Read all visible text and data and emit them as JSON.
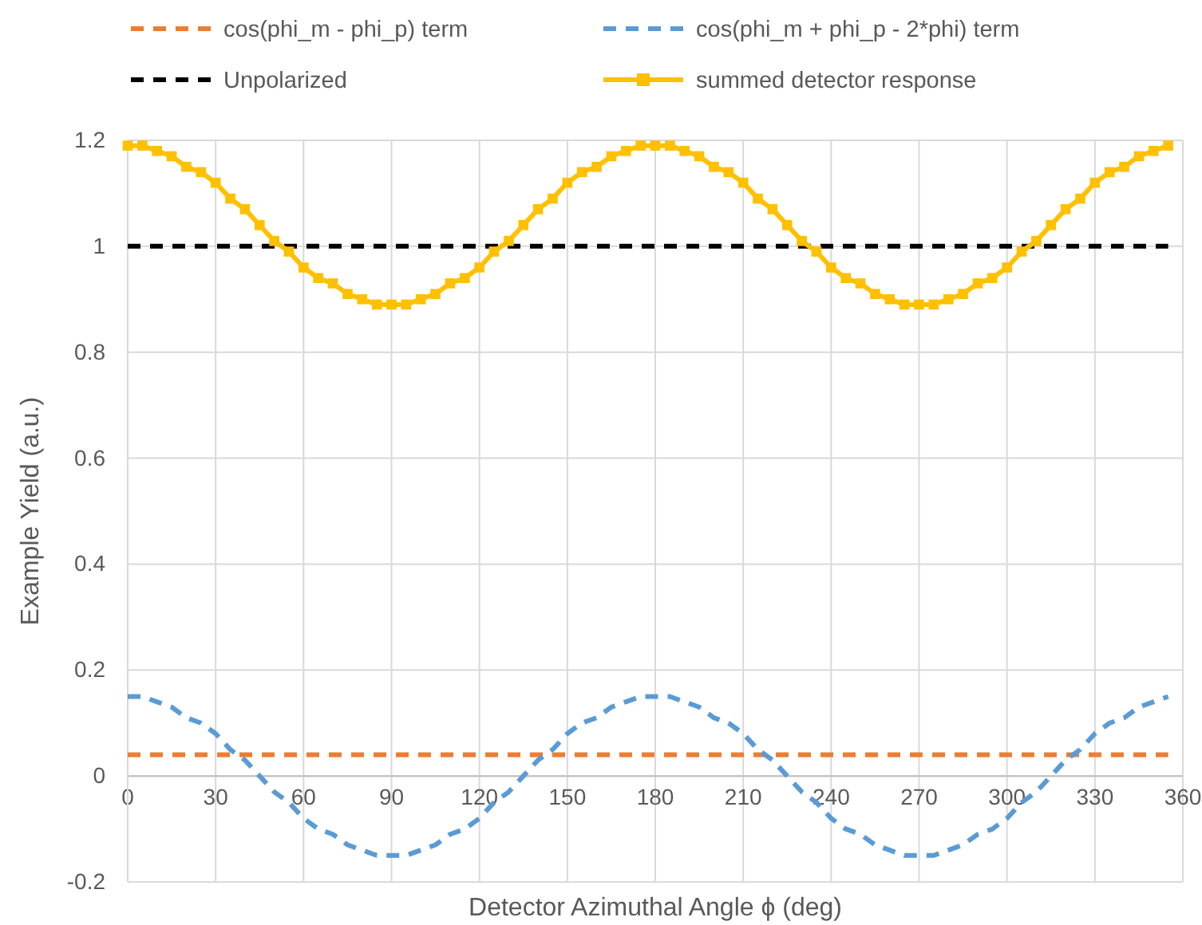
{
  "chart_data": {
    "type": "line",
    "xlabel": "Detector Azimuthal Angle ϕ (deg)",
    "ylabel": "Example Yield (a.u.)",
    "x": [
      0,
      5,
      10,
      15,
      20,
      25,
      30,
      35,
      40,
      45,
      50,
      55,
      60,
      65,
      70,
      75,
      80,
      85,
      90,
      95,
      100,
      105,
      110,
      115,
      120,
      125,
      130,
      135,
      140,
      145,
      150,
      155,
      160,
      165,
      170,
      175,
      180,
      185,
      190,
      195,
      200,
      205,
      210,
      215,
      220,
      225,
      230,
      235,
      240,
      245,
      250,
      255,
      260,
      265,
      270,
      275,
      280,
      285,
      290,
      295,
      300,
      305,
      310,
      315,
      320,
      325,
      330,
      335,
      340,
      345,
      350,
      355
    ],
    "series": [
      {
        "name": "cos(phi_m - phi_p) term",
        "color": "#ed7d31",
        "line_style": "dashed",
        "marker": "none",
        "values": [
          0.04,
          0.04,
          0.04,
          0.04,
          0.04,
          0.04,
          0.04,
          0.04,
          0.04,
          0.04,
          0.04,
          0.04,
          0.04,
          0.04,
          0.04,
          0.04,
          0.04,
          0.04,
          0.04,
          0.04,
          0.04,
          0.04,
          0.04,
          0.04,
          0.04,
          0.04,
          0.04,
          0.04,
          0.04,
          0.04,
          0.04,
          0.04,
          0.04,
          0.04,
          0.04,
          0.04,
          0.04,
          0.04,
          0.04,
          0.04,
          0.04,
          0.04,
          0.04,
          0.04,
          0.04,
          0.04,
          0.04,
          0.04,
          0.04,
          0.04,
          0.04,
          0.04,
          0.04,
          0.04,
          0.04,
          0.04,
          0.04,
          0.04,
          0.04,
          0.04,
          0.04,
          0.04,
          0.04,
          0.04,
          0.04,
          0.04,
          0.04,
          0.04,
          0.04,
          0.04,
          0.04,
          0.04
        ]
      },
      {
        "name": "cos(phi_m + phi_p - 2*phi) term",
        "color": "#5b9bd5",
        "line_style": "dashed",
        "marker": "none",
        "values": [
          0.15,
          0.15,
          0.14,
          0.13,
          0.11,
          0.1,
          0.08,
          0.05,
          0.03,
          0,
          -0.03,
          -0.05,
          -0.08,
          -0.1,
          -0.11,
          -0.13,
          -0.14,
          -0.15,
          -0.15,
          -0.15,
          -0.14,
          -0.13,
          -0.11,
          -0.1,
          -0.08,
          -0.05,
          -0.03,
          0,
          0.03,
          0.05,
          0.08,
          0.1,
          0.11,
          0.13,
          0.14,
          0.15,
          0.15,
          0.15,
          0.14,
          0.13,
          0.11,
          0.1,
          0.08,
          0.05,
          0.03,
          0,
          -0.03,
          -0.05,
          -0.08,
          -0.1,
          -0.11,
          -0.13,
          -0.14,
          -0.15,
          -0.15,
          -0.15,
          -0.14,
          -0.13,
          -0.11,
          -0.1,
          -0.08,
          -0.05,
          -0.03,
          0,
          0.03,
          0.05,
          0.08,
          0.1,
          0.11,
          0.13,
          0.14,
          0.15
        ]
      },
      {
        "name": "Unpolarized",
        "color": "#000000",
        "line_style": "dashed",
        "marker": "none",
        "values": [
          1,
          1,
          1,
          1,
          1,
          1,
          1,
          1,
          1,
          1,
          1,
          1,
          1,
          1,
          1,
          1,
          1,
          1,
          1,
          1,
          1,
          1,
          1,
          1,
          1,
          1,
          1,
          1,
          1,
          1,
          1,
          1,
          1,
          1,
          1,
          1,
          1,
          1,
          1,
          1,
          1,
          1,
          1,
          1,
          1,
          1,
          1,
          1,
          1,
          1,
          1,
          1,
          1,
          1,
          1,
          1,
          1,
          1,
          1,
          1,
          1,
          1,
          1,
          1,
          1,
          1,
          1,
          1,
          1,
          1,
          1,
          1
        ]
      },
      {
        "name": "summed detector response",
        "color": "#ffc000",
        "line_style": "solid",
        "marker": "square",
        "values": [
          1.19,
          1.19,
          1.18,
          1.17,
          1.15,
          1.14,
          1.12,
          1.09,
          1.07,
          1.04,
          1.01,
          0.99,
          0.96,
          0.94,
          0.93,
          0.91,
          0.9,
          0.89,
          0.89,
          0.89,
          0.9,
          0.91,
          0.93,
          0.94,
          0.96,
          0.99,
          1.01,
          1.04,
          1.07,
          1.09,
          1.12,
          1.14,
          1.15,
          1.17,
          1.18,
          1.19,
          1.19,
          1.19,
          1.18,
          1.17,
          1.15,
          1.14,
          1.12,
          1.09,
          1.07,
          1.04,
          1.01,
          0.99,
          0.96,
          0.94,
          0.93,
          0.91,
          0.9,
          0.89,
          0.89,
          0.89,
          0.9,
          0.91,
          0.93,
          0.94,
          0.96,
          0.99,
          1.01,
          1.04,
          1.07,
          1.09,
          1.12,
          1.14,
          1.15,
          1.17,
          1.18,
          1.19
        ]
      }
    ],
    "xlim": [
      0,
      360
    ],
    "xticks": [
      0,
      30,
      60,
      90,
      120,
      150,
      180,
      210,
      240,
      270,
      300,
      330,
      360
    ],
    "ylim": [
      -0.2,
      1.2
    ],
    "yticks": [
      -0.2,
      0,
      0.2,
      0.4,
      0.6,
      0.8,
      1,
      1.2
    ],
    "grid": true,
    "legend": "top"
  }
}
